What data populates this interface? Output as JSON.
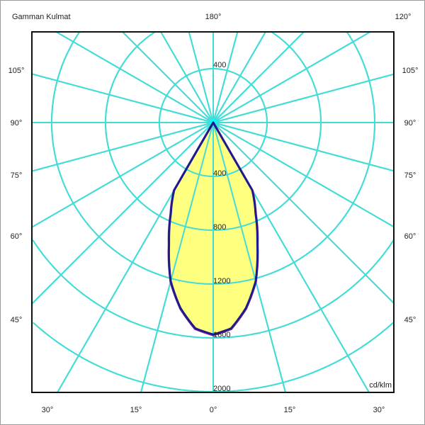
{
  "chart_data": {
    "type": "polar",
    "title": "Gamman Kulmat",
    "unit_label": "cd/klm",
    "radial_ticks": [
      400,
      800,
      1200,
      1600,
      2000
    ],
    "radial_tick_labels": [
      "400",
      "800",
      "1200",
      "1600",
      "2000"
    ],
    "radial_range": [
      0,
      2000
    ],
    "angle_step_deg": 15,
    "angle_labels": {
      "top": [
        "180°",
        "120°"
      ],
      "left": [
        "105°",
        "90°",
        "75°",
        "60°",
        "45°"
      ],
      "right": [
        "105°",
        "90°",
        "75°",
        "60°",
        "45°"
      ],
      "bottom": [
        "30°",
        "15°",
        "0°",
        "15°",
        "30°"
      ]
    },
    "grid": true,
    "series": [
      {
        "gamma_deg": [
          -30,
          -25,
          -20,
          -15,
          -10,
          -5,
          0,
          5,
          10,
          15,
          20,
          25,
          30
        ],
        "values": [
          580,
          745,
          960,
          1220,
          1400,
          1535,
          1575,
          1535,
          1400,
          1220,
          960,
          745,
          580
        ],
        "color": "#1c1c8e"
      },
      {
        "gamma_deg": [
          -30,
          -25,
          -20,
          -15,
          -10,
          -5,
          0,
          5,
          10,
          15,
          20,
          25,
          30
        ],
        "values": [
          585,
          750,
          965,
          1225,
          1405,
          1540,
          1580,
          1540,
          1405,
          1225,
          965,
          750,
          585
        ],
        "color": "#a0208c"
      }
    ],
    "colors": {
      "grid": "#44dcd6",
      "fill": "#ffff80",
      "frame": "#111111"
    }
  }
}
